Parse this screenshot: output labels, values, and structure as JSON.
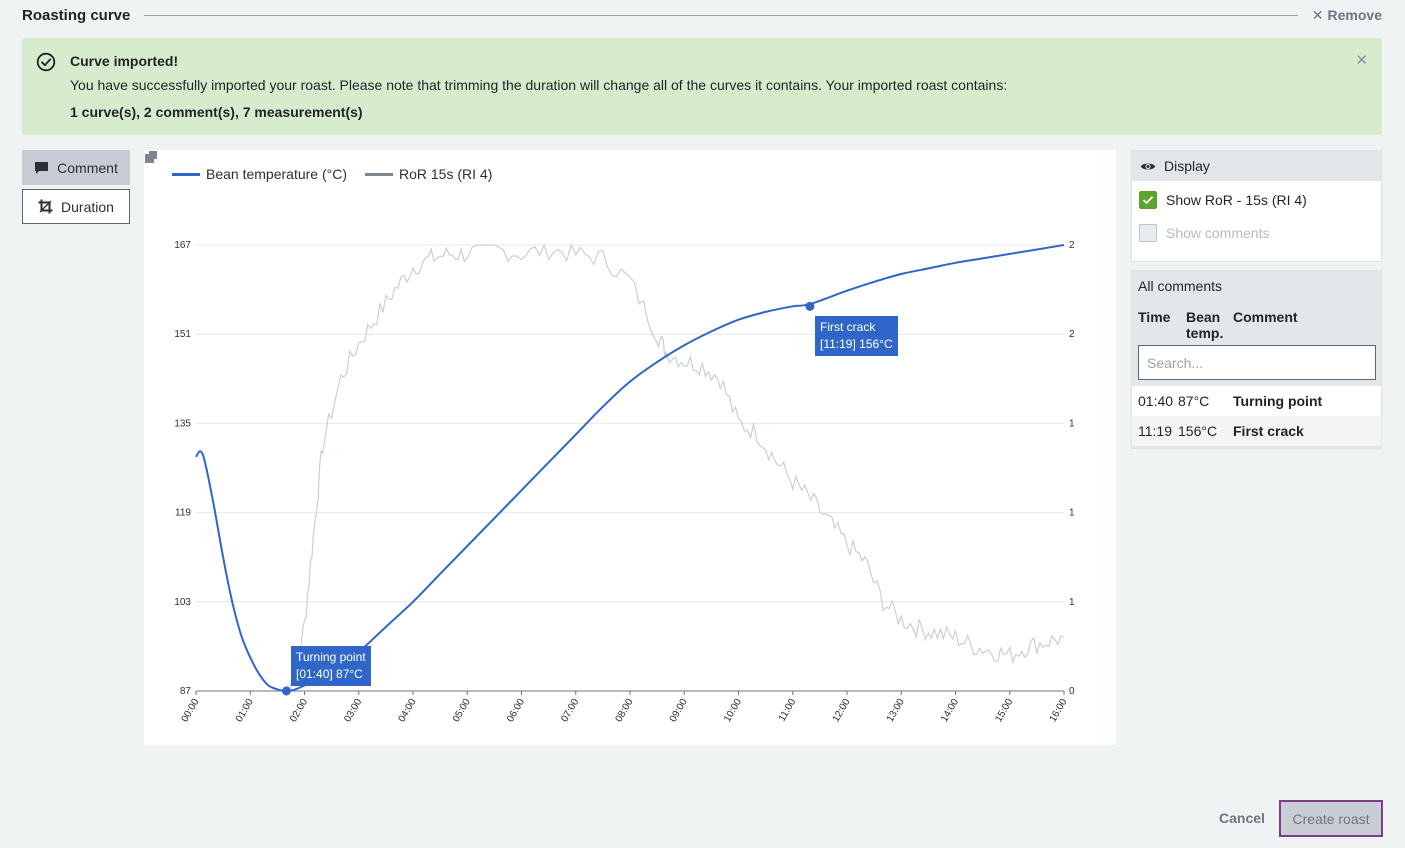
{
  "header": {
    "title": "Roasting curve",
    "remove_label": "Remove",
    "remove_icon": "close-icon"
  },
  "banner": {
    "title": "Curve imported!",
    "message": "You have successfully imported your roast. Please note that trimming the duration will change all of the curves it contains. Your imported roast contains:",
    "counts": "1 curve(s), 2 comment(s), 7 measurement(s)",
    "icon": "check-circle-icon",
    "close_icon": "close-icon",
    "color": "#d7ebcd"
  },
  "tools": {
    "comment_label": "Comment",
    "duration_label": "Duration"
  },
  "chart_data": {
    "type": "line",
    "x_unit": "mm:ss",
    "x_ticks": [
      "00:00",
      "01:00",
      "02:00",
      "03:00",
      "04:00",
      "05:00",
      "06:00",
      "07:00",
      "08:00",
      "09:00",
      "10:00",
      "11:00",
      "12:00",
      "13:00",
      "14:00",
      "15:00",
      "16:00"
    ],
    "xlim_seconds": [
      0,
      960
    ],
    "y_left_ticks": [
      "87",
      "103",
      "119",
      "135",
      "151",
      "167"
    ],
    "ylim": [
      87,
      167
    ],
    "y_right_ticks": [
      "0",
      "1",
      "1",
      "1",
      "2",
      "2"
    ],
    "grid": true,
    "legend_position": "top-left",
    "series": [
      {
        "name": "Bean temperature (°C)",
        "color": "#2f66c8",
        "x_seconds": [
          0,
          5,
          10,
          20,
          30,
          40,
          50,
          60,
          70,
          80,
          90,
          100,
          110,
          120,
          150,
          180,
          210,
          240,
          270,
          300,
          330,
          360,
          390,
          420,
          450,
          480,
          510,
          540,
          570,
          600,
          630,
          660,
          679,
          720,
          750,
          780,
          810,
          840,
          870,
          900,
          930,
          960
        ],
        "y": [
          129,
          130,
          128,
          120,
          111,
          103,
          97,
          93,
          90,
          88,
          87.3,
          87,
          87.3,
          88,
          90,
          94,
          98.5,
          103,
          108,
          113,
          118,
          123,
          128,
          133,
          138,
          142.5,
          146,
          149,
          151.5,
          153.6,
          155,
          156,
          156.4,
          158.8,
          160.4,
          161.8,
          162.8,
          163.8,
          164.6,
          165.4,
          166.2,
          167
        ]
      },
      {
        "name": "RoR 15s (RI 4)",
        "color": "#c9cfd4",
        "x_seconds": [
          100,
          110,
          120,
          130,
          140,
          160,
          180,
          200,
          220,
          240,
          260,
          280,
          300,
          330,
          360,
          390,
          420,
          450,
          480,
          510,
          520,
          540,
          560,
          580,
          600,
          620,
          640,
          660,
          680,
          700,
          720,
          740,
          760,
          780,
          800,
          820,
          840,
          860,
          880,
          900,
          920,
          940,
          960
        ],
        "y_relative": [
          0.0,
          0.05,
          0.15,
          0.35,
          0.55,
          0.7,
          0.78,
          0.84,
          0.9,
          0.95,
          0.97,
          0.98,
          0.98,
          0.99,
          0.98,
          0.99,
          0.98,
          0.97,
          0.92,
          0.8,
          0.76,
          0.74,
          0.73,
          0.7,
          0.6,
          0.58,
          0.52,
          0.47,
          0.43,
          0.38,
          0.33,
          0.29,
          0.2,
          0.16,
          0.14,
          0.13,
          0.12,
          0.1,
          0.09,
          0.08,
          0.1,
          0.11,
          0.12
        ]
      }
    ],
    "annotations": [
      {
        "label": "Turning point",
        "detail": "[01:40] 87°C",
        "x_seconds": 100,
        "y": 87
      },
      {
        "label": "First crack",
        "detail": "[11:19] 156°C",
        "x_seconds": 679,
        "y": 156
      }
    ]
  },
  "display": {
    "title": "Display",
    "icon": "eye-icon",
    "show_ror_label": "Show RoR - 15s (RI 4)",
    "show_ror_checked": true,
    "show_comments_label": "Show comments",
    "show_comments_checked": false
  },
  "comments": {
    "title": "All comments",
    "col_time": "Time",
    "col_temp": "Bean temp.",
    "col_comment": "Comment",
    "search_placeholder": "Search...",
    "rows": [
      {
        "time": "01:40",
        "temp": "87°C",
        "text": "Turning point"
      },
      {
        "time": "11:19",
        "temp": "156°C",
        "text": "First crack"
      }
    ]
  },
  "footer": {
    "cancel_label": "Cancel",
    "create_label": "Create roast"
  }
}
